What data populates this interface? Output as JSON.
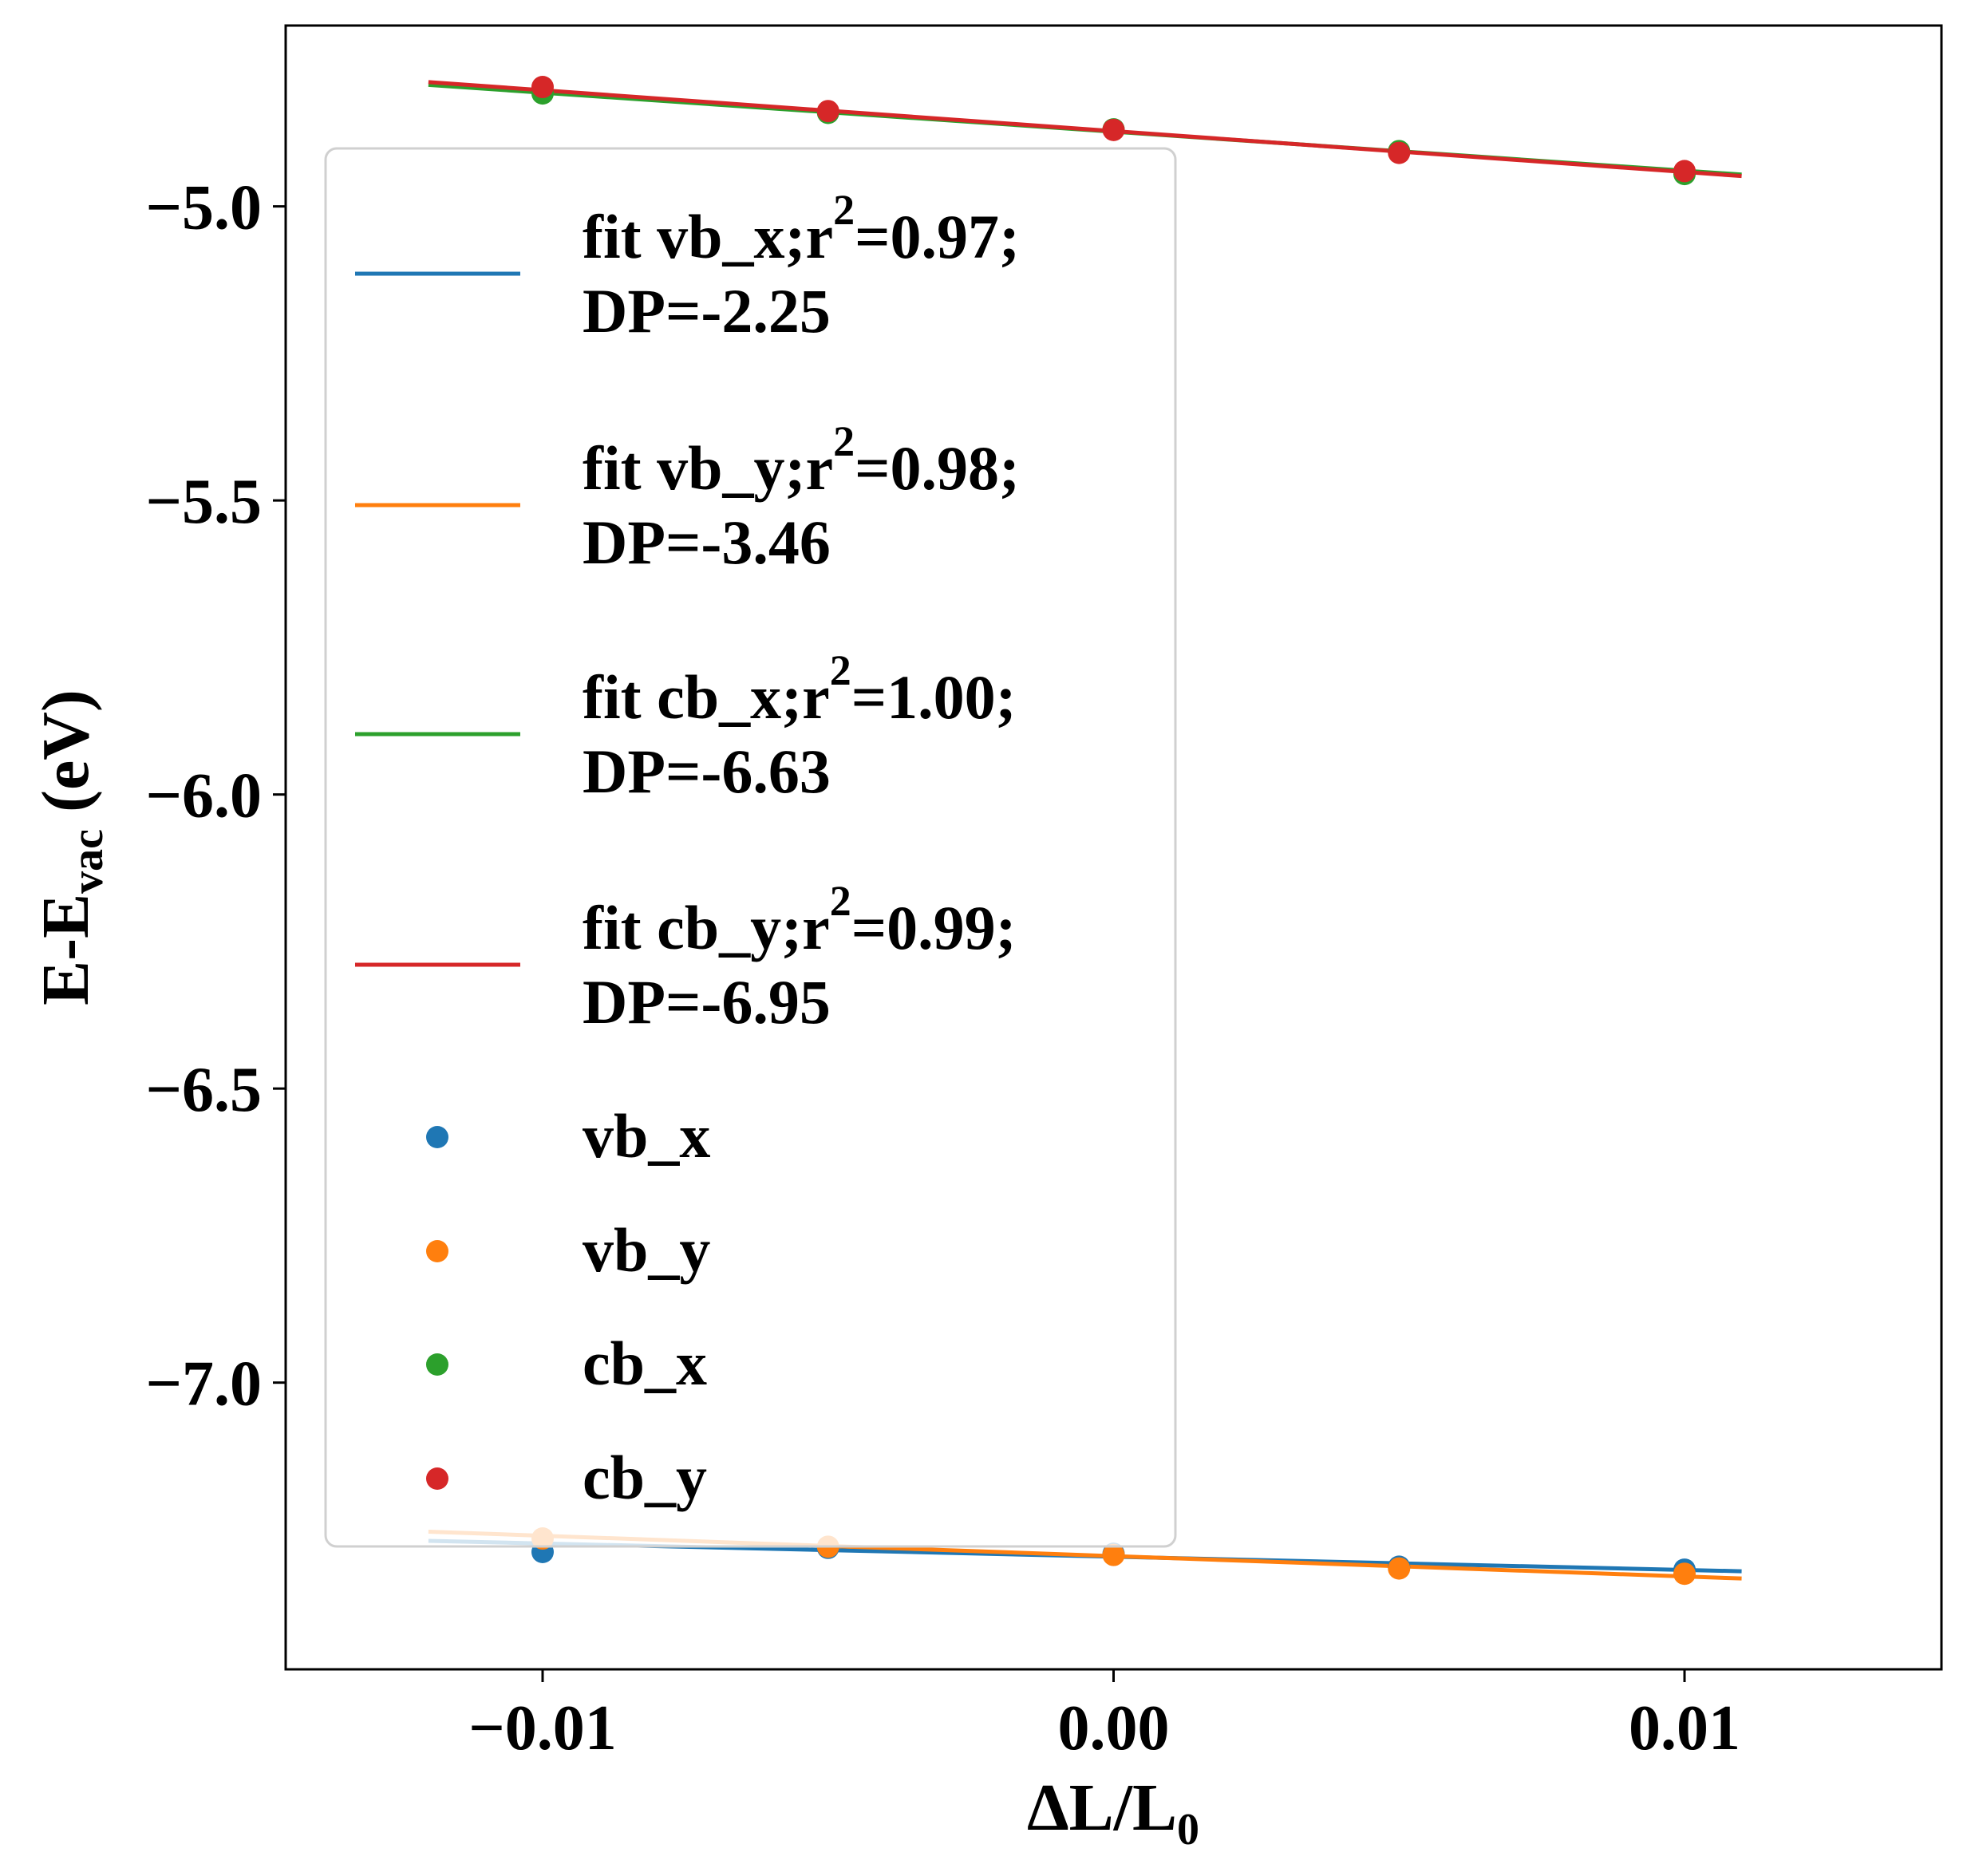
{
  "chart_data": {
    "type": "scatter",
    "xlabel": {
      "main": "ΔL/L",
      "sub": "0"
    },
    "ylabel": {
      "main": "E-E",
      "sub": "vac",
      "suffix": " (eV)"
    },
    "xlim": [
      -0.0145,
      0.0145
    ],
    "ylim": [
      -7.4875,
      -4.6925
    ],
    "xticks": [
      -0.01,
      0.0,
      0.01
    ],
    "xtick_labels": [
      "−0.01",
      "0.00",
      "0.01"
    ],
    "yticks": [
      -5.0,
      -5.5,
      -6.0,
      -6.5,
      -7.0
    ],
    "ytick_labels": [
      "−5.0",
      "−5.5",
      "−6.0",
      "−6.5",
      "−7.0"
    ],
    "grid": false,
    "legend_position": "upper-left",
    "x": [
      -0.01,
      -0.005,
      0.0,
      0.005,
      0.01
    ],
    "fit_x_range": [
      -0.012,
      0.011
    ],
    "series": [
      {
        "name": "vb_x",
        "color": "#1f77b4",
        "y": [
          -7.288,
          -7.281,
          -7.291,
          -7.313,
          -7.318
        ],
        "fit_name": "fit vb_x;r",
        "r2_label": "=0.97;",
        "dp_label": "DP=-2.25",
        "fit": {
          "slope": -2.25,
          "intercept": -7.296
        }
      },
      {
        "name": "vb_y",
        "color": "#ff7f0e",
        "y": [
          -7.265,
          -7.279,
          -7.293,
          -7.316,
          -7.325
        ],
        "fit_name": "fit vb_y;r",
        "r2_label": "=0.98;",
        "dp_label": "DP=-3.46",
        "fit": {
          "slope": -3.46,
          "intercept": -7.295
        }
      },
      {
        "name": "cb_x",
        "color": "#2ca02c",
        "y": [
          -4.808,
          -4.841,
          -4.869,
          -4.906,
          -4.945
        ],
        "fit_name": "fit cb_x;r",
        "r2_label": "=1.00;",
        "dp_label": "DP=-6.63",
        "fit": {
          "slope": -6.63,
          "intercept": -4.873
        }
      },
      {
        "name": "cb_y",
        "color": "#d62728",
        "y": [
          -4.797,
          -4.838,
          -4.87,
          -4.909,
          -4.94
        ],
        "fit_name": "fit cb_y;r",
        "r2_label": "=0.99;",
        "dp_label": "DP=-6.95",
        "fit": {
          "slope": -6.95,
          "intercept": -4.872
        }
      }
    ]
  }
}
